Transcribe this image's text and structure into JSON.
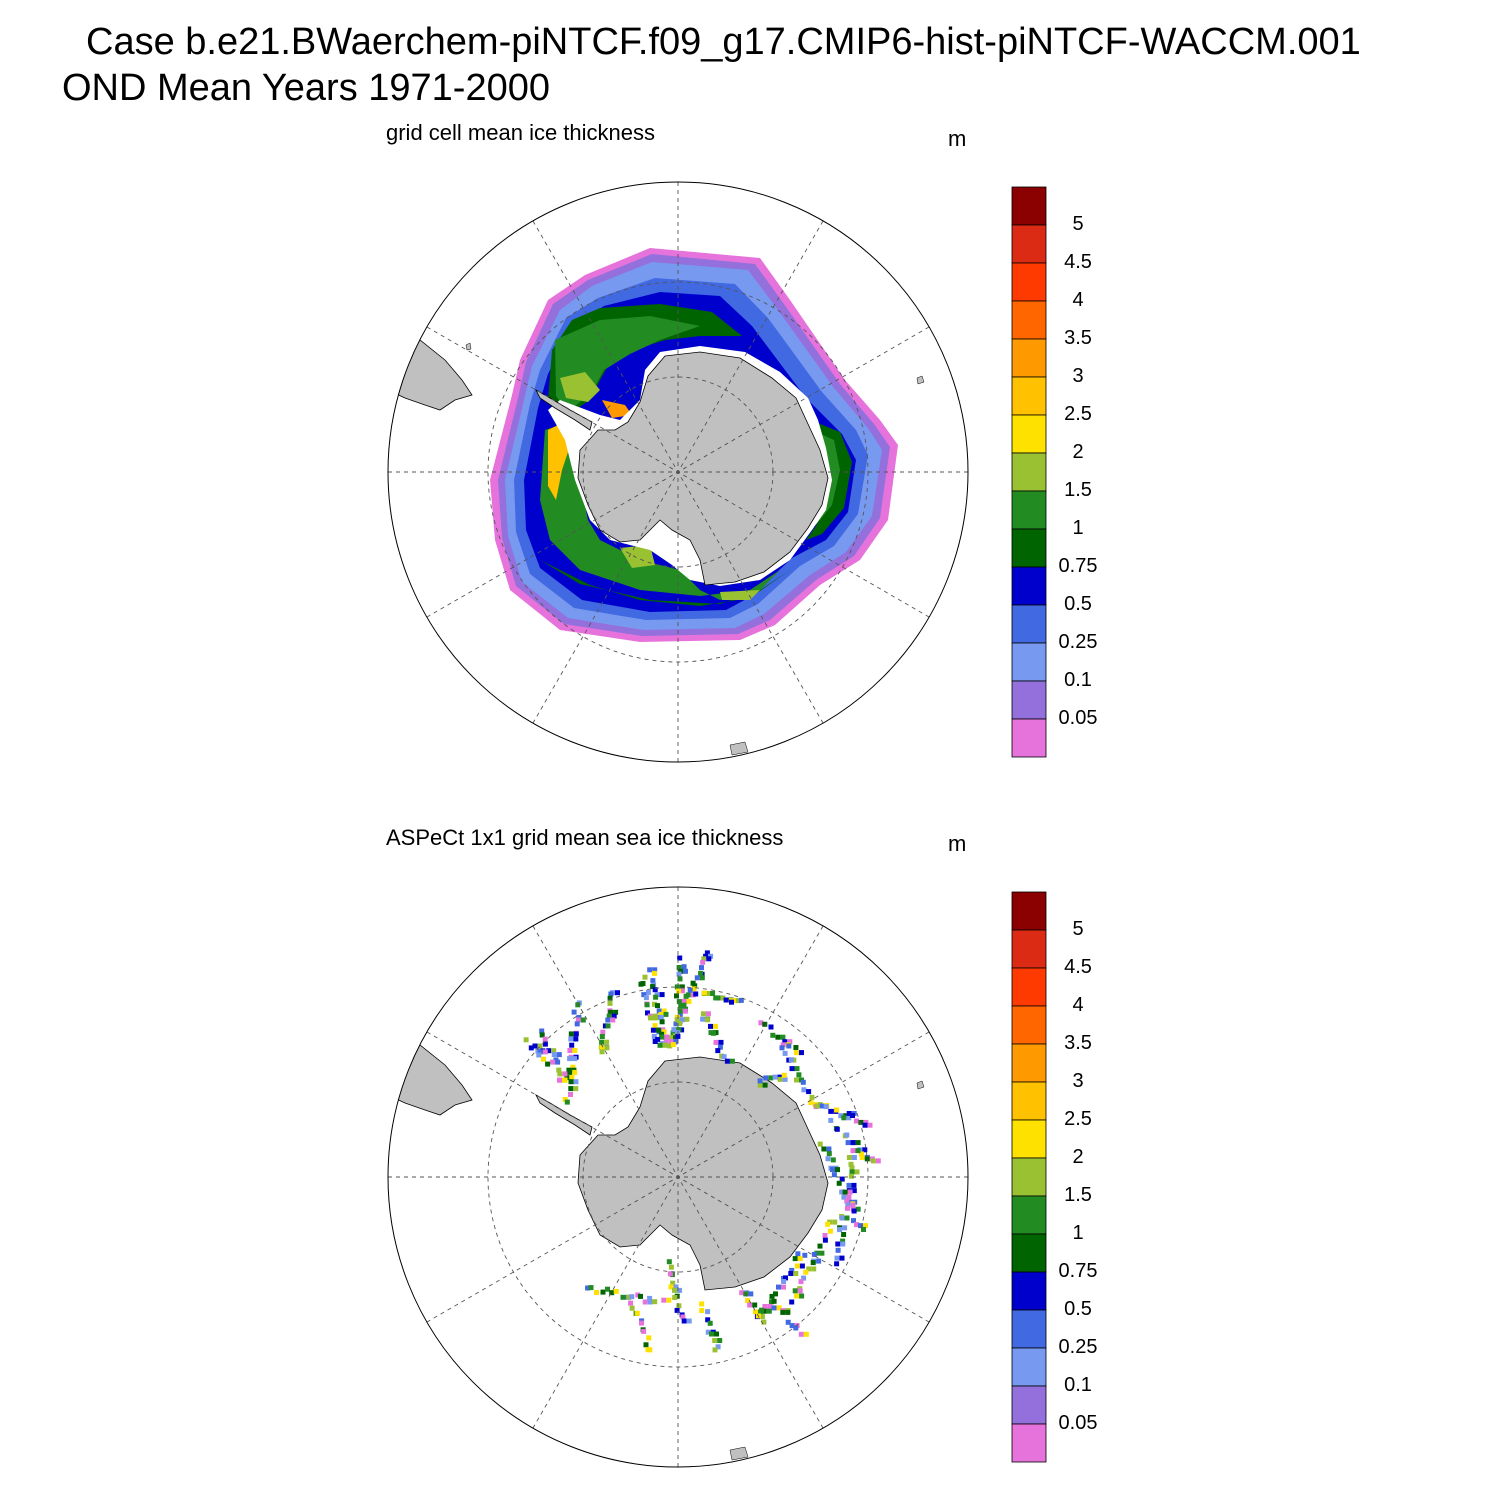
{
  "header": {
    "line1": "Case b.e21.BWaerchem-piNTCF.f09_g17.CMIP6-hist-piNTCF-WACCM.001",
    "line2": "OND Mean   Years 1971-2000"
  },
  "panels": [
    {
      "title": "grid cell mean ice thickness",
      "units": "m"
    },
    {
      "title": "ASPeCt 1x1 grid mean sea ice thickness",
      "units": "m"
    }
  ],
  "colorbar": {
    "labels": [
      "5",
      "4.5",
      "4",
      "3.5",
      "3",
      "2.5",
      "2",
      "1.5",
      "1",
      "0.75",
      "0.5",
      "0.25",
      "0.1",
      "0.05"
    ],
    "colors": [
      "#8b0000",
      "#dc2b14",
      "#ff3a00",
      "#ff6600",
      "#ff9900",
      "#ffc100",
      "#ffe100",
      "#99c132",
      "#228b22",
      "#006400",
      "#0000cd",
      "#4169e1",
      "#7899f0",
      "#9370db",
      "#e673dc"
    ]
  },
  "map_style": {
    "land": "#c0c0c0",
    "grid": "dashed"
  }
}
